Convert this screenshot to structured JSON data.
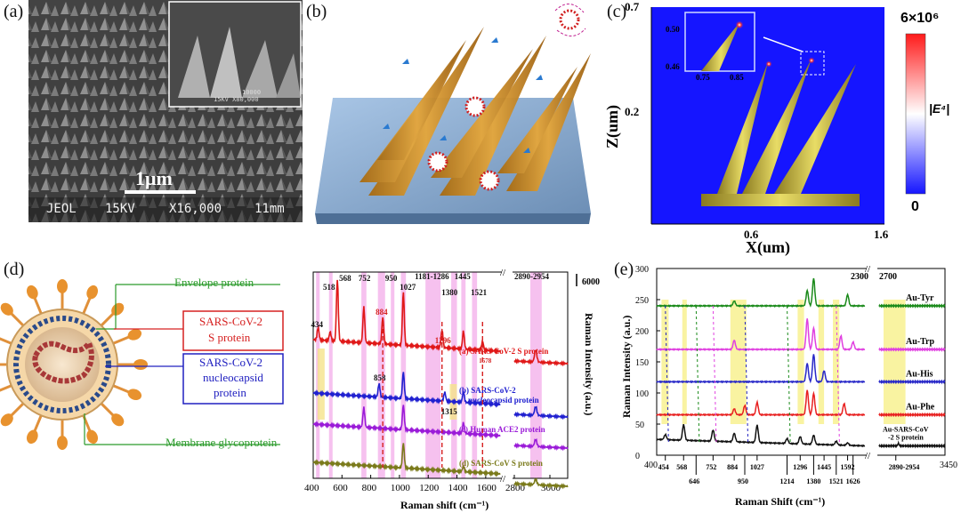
{
  "panels": {
    "a": {
      "label": "(a)",
      "scale_bar": "1μm",
      "info": {
        "brand": "JEOL",
        "kv": "15KV",
        "mag": "X16,000",
        "wd": "11mm"
      },
      "inset_text": {
        "line1": "10000",
        "line2": "15KV  X80,000"
      }
    },
    "b": {
      "label": "(b)"
    },
    "c": {
      "label": "(c)",
      "xlabel": "X(um)",
      "ylabel": "Z(um)",
      "xticks": [
        "0.6",
        "1.6"
      ],
      "yticks": [
        "0.7",
        "0.2"
      ],
      "inset_xticks": [
        "0.75",
        "0.85"
      ],
      "inset_yticks": [
        "0.50",
        "0.46"
      ],
      "cbar_max": "6×10⁶",
      "cbar_min": "0",
      "cbar_label": "|E⁴|",
      "colors": {
        "background": "#1515ff",
        "hot": "#ff1a1a",
        "needle": "#d9c84a"
      }
    },
    "d": {
      "label": "(d)",
      "envelope": "Envelope protein",
      "s_protein_line1": "SARS-CoV-2",
      "s_protein_line2": "S protein",
      "nucleo_line1": "SARS-CoV-2",
      "nucleo_line2": "nucleocapsid",
      "nucleo_line3": "protein",
      "membrane": "Membrane glycoprotein",
      "colors": {
        "green": "#2a9a2a",
        "red": "#d62020",
        "blue": "#2020c0"
      }
    },
    "e": {
      "label": "(e)"
    }
  },
  "chart_data": [
    {
      "type": "line",
      "panel": "d",
      "xlabel": "Raman shift (cm⁻¹)",
      "ylabel": "Raman Intensity (a.u.)",
      "xticks": [
        "400",
        "600",
        "800",
        "1000",
        "1200",
        "1400",
        "1600",
        "2800",
        "3000"
      ],
      "scale_label": "6000",
      "peak_labels": [
        "434",
        "518",
        "568",
        "752",
        "858",
        "884",
        "950",
        "1027",
        "1181-1286",
        "1296",
        "1315",
        "1380",
        "1445",
        "1521",
        "1578",
        "2890-2954"
      ],
      "series": [
        {
          "name": "(a) SARS-CoV-2 S protein",
          "color": "#e01818"
        },
        {
          "name": "(b) SARS-CoV-2 nucleocapsid protein",
          "color": "#2020d0"
        },
        {
          "name": "(c) Human ACE2 protein",
          "color": "#9a1ad8"
        },
        {
          "name": "(d) SARS-CoV S protein",
          "color": "#7a7a1a"
        }
      ],
      "legend_b_line1": "(b) SARS-CoV-2",
      "legend_b_line2": "nucleocapsid protein"
    },
    {
      "type": "line",
      "panel": "e",
      "xlabel": "Raman Shift (cm⁻¹)",
      "ylabel": "Raman Intensity (a.u.)",
      "xlim_labels": [
        "400",
        "3450"
      ],
      "ylim": [
        0,
        300
      ],
      "yticks": [
        "0",
        "50",
        "100",
        "150",
        "200",
        "250",
        "300"
      ],
      "break_labels": [
        "2300",
        "2700"
      ],
      "bottom_peaks_upper": [
        "454",
        "568",
        "752",
        "884",
        "1027",
        "1296",
        "1445",
        "1592",
        "2890-2954"
      ],
      "bottom_peaks_lower": [
        "646",
        "950",
        "1214",
        "1380",
        "1521",
        "1626"
      ],
      "series": [
        {
          "name": "Au-Tyr",
          "color": "#1a8a1a",
          "baseline": 240
        },
        {
          "name": "Au-Trp",
          "color": "#e040e0",
          "baseline": 170
        },
        {
          "name": "Au-His",
          "color": "#2828c8",
          "baseline": 118
        },
        {
          "name": "Au-Phe",
          "color": "#e82020",
          "baseline": 65
        },
        {
          "name": "Au-SARS-CoV-2 S protein",
          "color": "#111111",
          "baseline": 15
        }
      ],
      "bottom_label_line1": "Au-SARS-CoV",
      "bottom_label_line2": "-2 S protein"
    }
  ]
}
